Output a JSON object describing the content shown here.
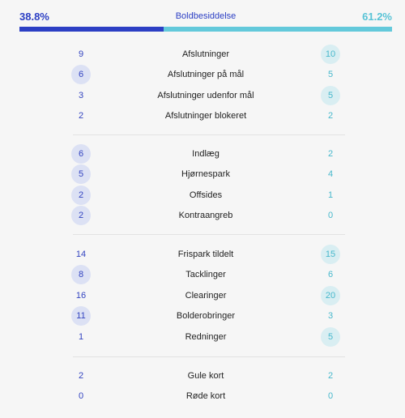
{
  "possession": {
    "label": "Boldbesiddelse",
    "home": "38.8%",
    "away": "61.2%",
    "home_fraction": 0.388
  },
  "colors": {
    "home": "#2c3fc4",
    "away": "#63c9db"
  },
  "groups": [
    [
      {
        "label": "Afslutninger",
        "home": "9",
        "away": "10",
        "highlight": "away"
      },
      {
        "label": "Afslutninger på mål",
        "home": "6",
        "away": "5",
        "highlight": "home"
      },
      {
        "label": "Afslutninger udenfor mål",
        "home": "3",
        "away": "5",
        "highlight": "away"
      },
      {
        "label": "Afslutninger blokeret",
        "home": "2",
        "away": "2",
        "highlight": "none"
      }
    ],
    [
      {
        "label": "Indlæg",
        "home": "6",
        "away": "2",
        "highlight": "home"
      },
      {
        "label": "Hjørnespark",
        "home": "5",
        "away": "4",
        "highlight": "home"
      },
      {
        "label": "Offsides",
        "home": "2",
        "away": "1",
        "highlight": "home"
      },
      {
        "label": "Kontraangreb",
        "home": "2",
        "away": "0",
        "highlight": "home"
      }
    ],
    [
      {
        "label": "Frispark tildelt",
        "home": "14",
        "away": "15",
        "highlight": "away"
      },
      {
        "label": "Tacklinger",
        "home": "8",
        "away": "6",
        "highlight": "home"
      },
      {
        "label": "Clearinger",
        "home": "16",
        "away": "20",
        "highlight": "away"
      },
      {
        "label": "Bolderobringer",
        "home": "11",
        "away": "3",
        "highlight": "home"
      },
      {
        "label": "Redninger",
        "home": "1",
        "away": "5",
        "highlight": "away"
      }
    ],
    [
      {
        "label": "Gule kort",
        "home": "2",
        "away": "2",
        "highlight": "none"
      },
      {
        "label": "Røde kort",
        "home": "0",
        "away": "0",
        "highlight": "none"
      }
    ]
  ]
}
